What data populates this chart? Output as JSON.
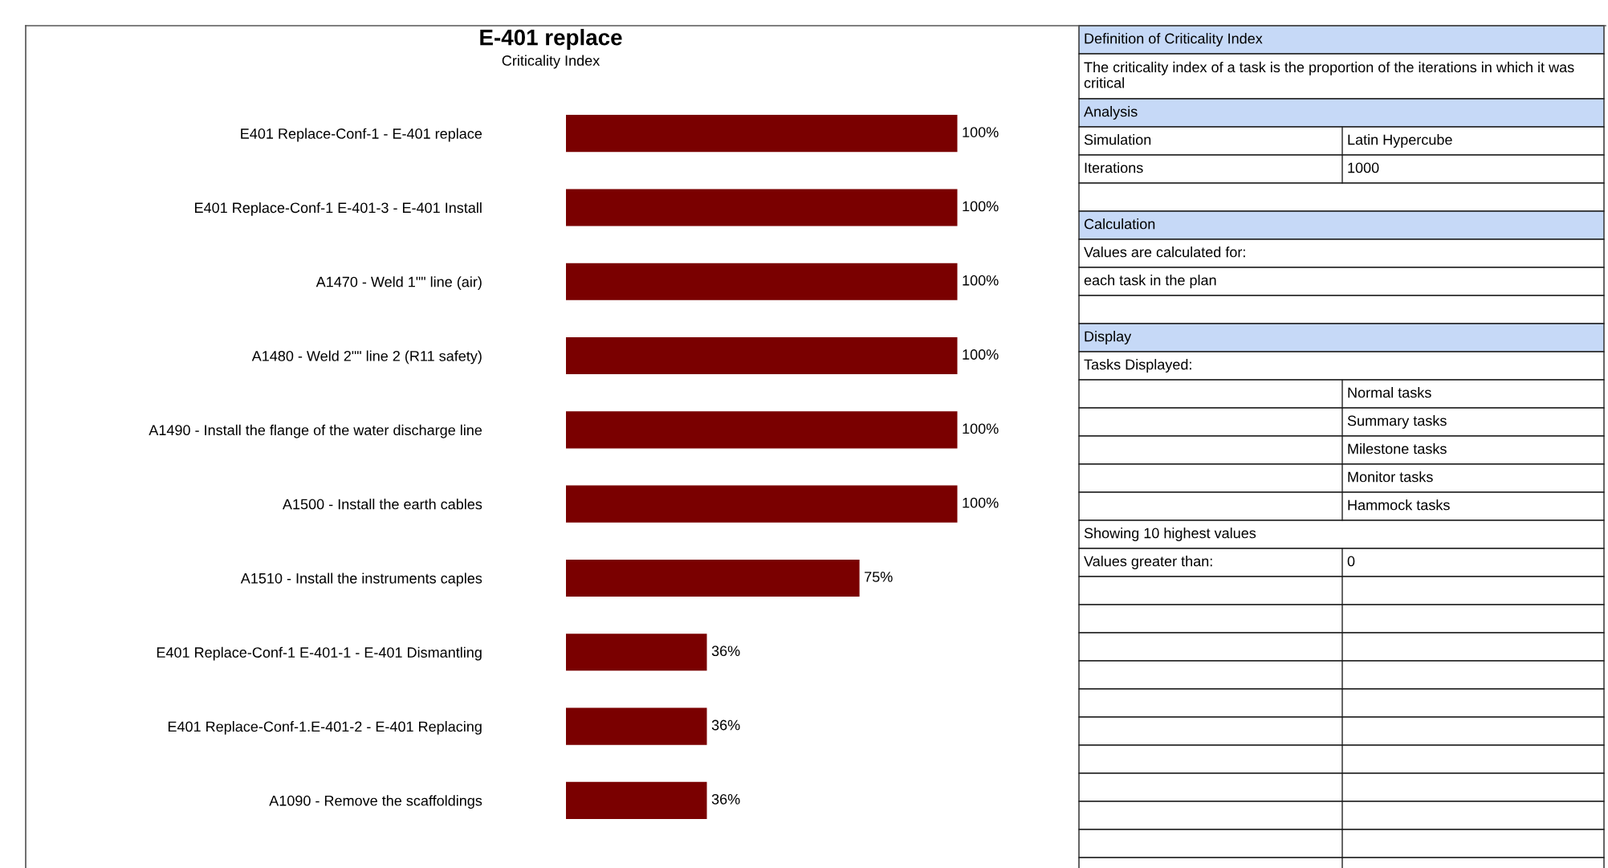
{
  "chart_data": [
    {
      "type": "bar",
      "orientation": "horizontal",
      "title": "E-401 replace",
      "subtitle": "Criticality Index",
      "categories": [
        "E401 Replace-Conf-1 - E-401 replace",
        "E401 Replace-Conf-1 E-401-3 - E-401 Install",
        "A1470 - Weld 1\"\" line (air)",
        "A1480 - Weld 2\"\" line 2 (R11 safety)",
        "A1490 - Install the flange of the water discharge line",
        "A1500 - Install the earth cables",
        "A1510 - Install the instruments caples",
        "E401 Replace-Conf-1 E-401-1 - E-401 Dismantling",
        "E401 Replace-Conf-1.E-401-2 - E-401 Replacing",
        "A1090 - Remove the scaffoldings"
      ],
      "values": [
        100,
        100,
        100,
        100,
        100,
        100,
        75,
        36,
        36,
        36
      ],
      "value_labels": [
        "100%",
        "100%",
        "100%",
        "100%",
        "100%",
        "100%",
        "75%",
        "36%",
        "36%",
        "36%"
      ],
      "color": "#7a0000",
      "grid": false,
      "legend": false
    },
    {
      "type": "other",
      "annotations": [
        "Definition of Criticality Index",
        "The criticality index of a task is the proportion of the iterations in which it was critical",
        "Analysis",
        "Simulation",
        "Latin Hypercube",
        "Iterations",
        "1000",
        "Calculation",
        "Values are calculated for:",
        "each task in the plan",
        "Display",
        "Tasks Displayed:",
        "Normal tasks",
        "Summary tasks",
        "Milestone tasks",
        "Monitor tasks",
        "Hammock tasks",
        "Showing 10 highest values",
        "Values greater than:",
        "0"
      ]
    }
  ]
}
